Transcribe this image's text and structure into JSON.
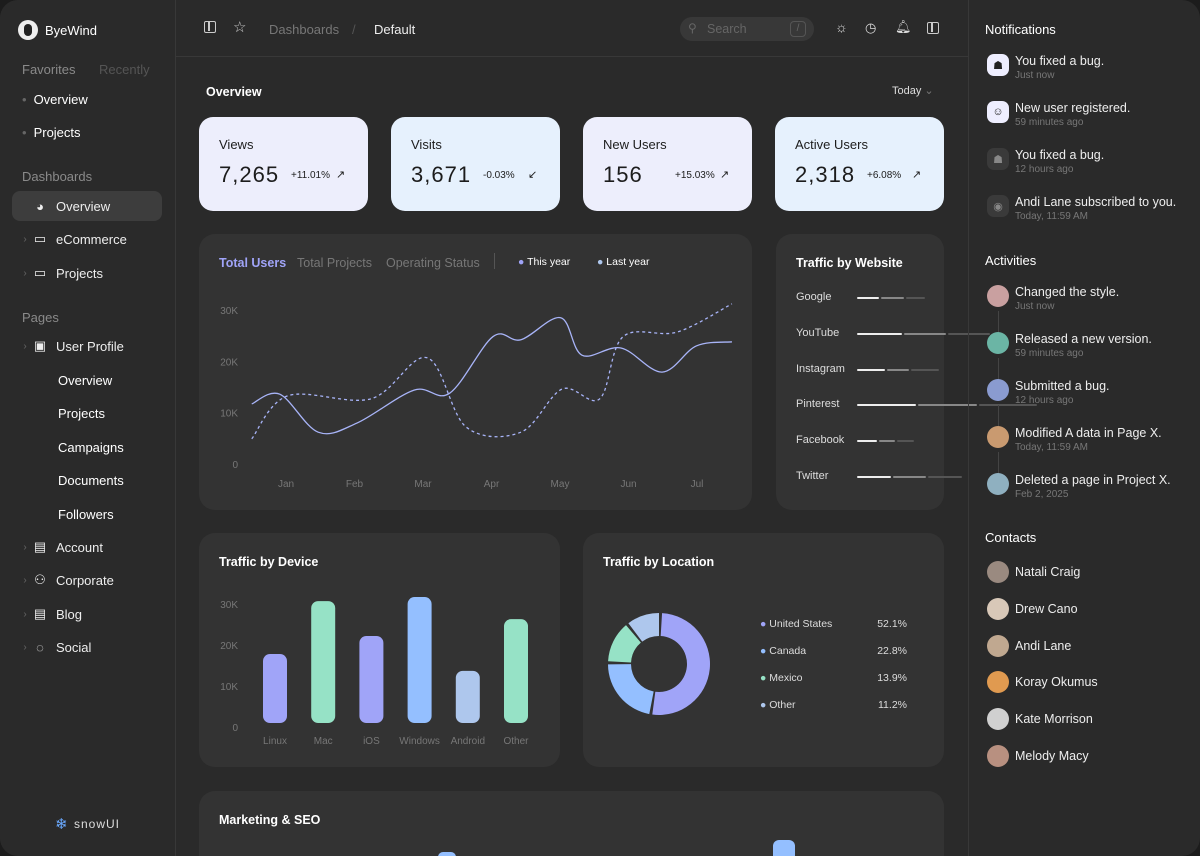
{
  "sidebar": {
    "brand": "ByeWind",
    "tabs": [
      "Favorites",
      "Recently"
    ],
    "favorites": [
      "Overview",
      "Projects"
    ],
    "dashboards_label": "Dashboards",
    "dashboards": [
      "Overview",
      "eCommerce",
      "Projects"
    ],
    "pages_label": "Pages",
    "user_profile": "User Profile",
    "user_profile_sub": [
      "Overview",
      "Projects",
      "Campaigns",
      "Documents",
      "Followers"
    ],
    "pages": [
      "Account",
      "Corporate",
      "Blog",
      "Social"
    ],
    "footer_logo": "snowUI"
  },
  "topbar": {
    "breadcrumb": [
      "Dashboards",
      "Default"
    ],
    "search_placeholder": "Search",
    "search_shortcut": "/"
  },
  "overview": {
    "title": "Overview",
    "range": "Today",
    "stats": [
      {
        "label": "Views",
        "value": "7,265",
        "change": "+11.01%",
        "trend": "up",
        "bg": "#edeefc"
      },
      {
        "label": "Visits",
        "value": "3,671",
        "change": "-0.03%",
        "trend": "down",
        "bg": "#e6f1fd"
      },
      {
        "label": "New Users",
        "value": "156",
        "change": "+15.03%",
        "trend": "up",
        "bg": "#edeefc"
      },
      {
        "label": "Active Users",
        "value": "2,318",
        "change": "+6.08%",
        "trend": "up",
        "bg": "#e6f1fd"
      }
    ]
  },
  "users_chart": {
    "tabs": [
      "Total Users",
      "Total Projects",
      "Operating Status"
    ],
    "active_tab": "Total Users",
    "legend": [
      "This year",
      "Last year"
    ]
  },
  "chart_data": [
    {
      "type": "line",
      "xlabel": "",
      "ylabel": "",
      "categories": [
        "Jan",
        "Feb",
        "Mar",
        "Apr",
        "May",
        "Jun",
        "Jul"
      ],
      "yticks": [
        "0",
        "10K",
        "20K",
        "30K"
      ],
      "ylim": [
        0,
        30000
      ],
      "series": [
        {
          "name": "This year",
          "style": "solid",
          "color": "#a8b4f8",
          "x": [
            -0.5,
            -0.09,
            0.47,
            1.04,
            1.87,
            2.39,
            3.02,
            3.43,
            4.01,
            4.32,
            4.89,
            5.49,
            5.99,
            6.51
          ],
          "y": [
            11700,
            13600,
            6200,
            8000,
            14400,
            13800,
            24800,
            24200,
            28500,
            21200,
            22600,
            17900,
            23000,
            23800
          ]
        },
        {
          "name": "Last year",
          "style": "dashed",
          "color": "#a8b4f8",
          "x": [
            -0.5,
            0.03,
            1.24,
            2.06,
            2.63,
            3.43,
            4.03,
            4.58,
            4.92,
            5.71,
            6.51
          ],
          "y": [
            4900,
            13300,
            12700,
            20700,
            7200,
            6200,
            14600,
            12700,
            24800,
            25700,
            31200
          ]
        }
      ]
    },
    {
      "type": "bar",
      "title": "Traffic by Device",
      "categories": [
        "Linux",
        "Mac",
        "iOS",
        "Windows",
        "Android",
        "Other"
      ],
      "values": [
        17800,
        30700,
        22200,
        31700,
        13700,
        26300
      ],
      "colors": [
        "#a0a4f8",
        "#96e2c6",
        "#a0a4f8",
        "#94bfff",
        "#aec7ed",
        "#96e2c6"
      ],
      "yticks": [
        "0",
        "10K",
        "20K",
        "30K"
      ],
      "ylim": [
        0,
        30000
      ]
    },
    {
      "type": "pie",
      "title": "Traffic by Location",
      "categories": [
        "United States",
        "Canada",
        "Mexico",
        "Other"
      ],
      "values": [
        52.1,
        22.8,
        13.9,
        11.2
      ],
      "labels": [
        "52.1%",
        "22.8%",
        "13.9%",
        "11.2%"
      ],
      "colors": [
        "#a0a4f8",
        "#94bfff",
        "#96e2c6",
        "#aec7ed"
      ]
    }
  ],
  "website": {
    "title": "Traffic by Website",
    "rows": [
      {
        "name": "Google",
        "bars": [
          8,
          8,
          7
        ]
      },
      {
        "name": "YouTube",
        "bars": [
          16,
          15,
          15
        ]
      },
      {
        "name": "Instagram",
        "bars": [
          10,
          8,
          10
        ]
      },
      {
        "name": "Pinterest",
        "bars": [
          21,
          21,
          21
        ]
      },
      {
        "name": "Facebook",
        "bars": [
          7,
          6,
          6
        ]
      },
      {
        "name": "Twitter",
        "bars": [
          12,
          12,
          12
        ]
      }
    ]
  },
  "marketing": {
    "title": "Marketing & SEO"
  },
  "notifications": {
    "title": "Notifications",
    "items": [
      {
        "text": "You fixed a bug.",
        "time": "Just now",
        "icon": "bug-icon"
      },
      {
        "text": "New user registered.",
        "time": "59 minutes ago",
        "icon": "user-icon"
      },
      {
        "text": "You fixed a bug.",
        "time": "12 hours ago",
        "icon": "bug-icon"
      },
      {
        "text": "Andi Lane subscribed to you.",
        "time": "Today, 11:59 AM",
        "icon": "broadcast-icon"
      }
    ]
  },
  "activities": {
    "title": "Activities",
    "items": [
      {
        "text": "Changed the style.",
        "time": "Just now"
      },
      {
        "text": "Released a new version.",
        "time": "59 minutes ago"
      },
      {
        "text": "Submitted a bug.",
        "time": "12 hours ago"
      },
      {
        "text": "Modified A data in Page X.",
        "time": "Today, 11:59 AM"
      },
      {
        "text": "Deleted a page in Project X.",
        "time": "Feb 2, 2025"
      }
    ]
  },
  "contacts": {
    "title": "Contacts",
    "items": [
      "Natali Craig",
      "Drew Cano",
      "Andi Lane",
      "Koray Okumus",
      "Kate Morrison",
      "Melody Macy"
    ]
  }
}
